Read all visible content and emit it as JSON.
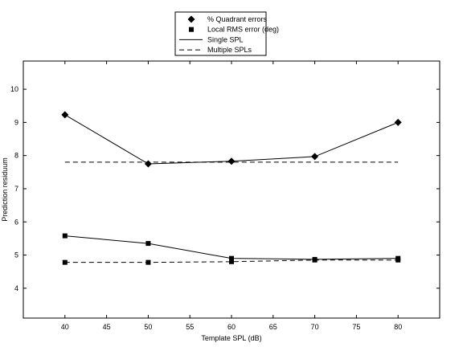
{
  "chart_data": {
    "type": "line",
    "xlabel": "Template SPL (dB)",
    "ylabel": "Prediction residuum",
    "xlim": [
      35,
      85
    ],
    "ylim": [
      3.1,
      10.85
    ],
    "xticks": [
      40,
      45,
      50,
      55,
      60,
      65,
      70,
      75,
      80
    ],
    "yticks": [
      4,
      5,
      6,
      7,
      8,
      9,
      10
    ],
    "grid": false,
    "legend_placement": "top-center-outside",
    "legend": [
      {
        "label": "% Quadrant errors",
        "type": "marker",
        "marker": "diamond"
      },
      {
        "label": "Local RMS error (deg)",
        "type": "marker",
        "marker": "square"
      },
      {
        "label": "Single SPL",
        "type": "line",
        "style": "solid"
      },
      {
        "label": "Multiple SPLs",
        "type": "line",
        "style": "dashed"
      }
    ],
    "series": [
      {
        "x": [
          40,
          50,
          60,
          70,
          80
        ],
        "values": [
          9.23,
          7.75,
          7.83,
          7.97,
          9.0
        ],
        "style": "solid",
        "marker": "diamond"
      },
      {
        "x": [
          40,
          50,
          60,
          70,
          80
        ],
        "values": [
          7.8,
          7.8,
          7.8,
          7.8,
          7.8
        ],
        "style": "dashed",
        "marker": "none"
      },
      {
        "x": [
          40,
          50,
          60,
          70,
          80
        ],
        "values": [
          5.58,
          5.35,
          4.9,
          4.87,
          4.9
        ],
        "style": "solid",
        "marker": "square"
      },
      {
        "x": [
          40,
          50,
          60,
          70,
          80
        ],
        "values": [
          4.78,
          4.78,
          4.8,
          4.85,
          4.85
        ],
        "style": "dashed",
        "marker": "square"
      }
    ]
  }
}
